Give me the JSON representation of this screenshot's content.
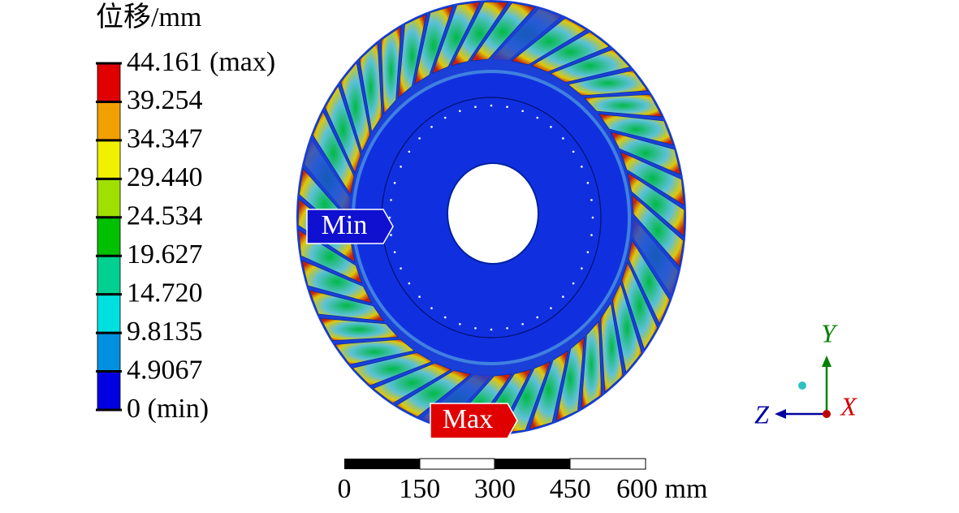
{
  "legend": {
    "title": "位移/mm",
    "labels": [
      "44.161 (max)",
      "39.254",
      "34.347",
      "29.440",
      "24.534",
      "19.627",
      "14.720",
      "9.8135",
      "4.9067",
      "0 (min)"
    ],
    "colors": [
      "#e00000",
      "#f0a000",
      "#f0f000",
      "#a0e000",
      "#00c000",
      "#00d090",
      "#00e0e0",
      "#0090e0",
      "#0000e0"
    ]
  },
  "markers": {
    "min": "Min",
    "max": "Max"
  },
  "triad": {
    "x": "X",
    "y": "Y",
    "z": "Z"
  },
  "scale_bar": {
    "labels": [
      "0",
      "150",
      "300",
      "450",
      "600 mm"
    ]
  }
}
